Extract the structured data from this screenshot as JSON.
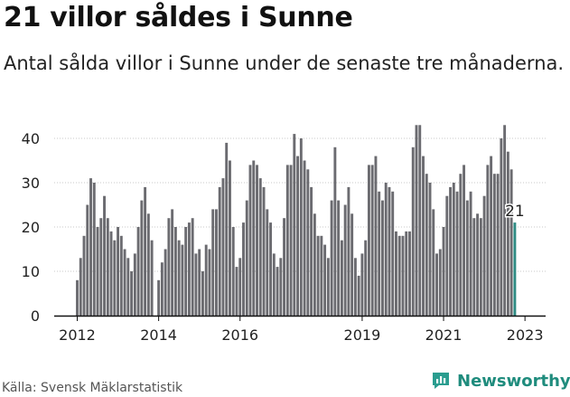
{
  "header": {
    "title": "21 villor såldes i Sunne",
    "subtitle": "Antal sålda villor i Sunne under de senaste tre månaderna."
  },
  "footer": {
    "source": "Källa: Svensk Mäklarstatistik",
    "brand": "Newsworthy"
  },
  "colors": {
    "bar": "#6b6b70",
    "highlight": "#2e8b83",
    "brand": "#1f8c7d"
  },
  "chart_data": {
    "type": "bar",
    "title": "21 villor såldes i Sunne",
    "xlabel": "",
    "ylabel": "",
    "ylim": [
      0,
      43
    ],
    "yticks": [
      0,
      10,
      20,
      30,
      40
    ],
    "xticks": [
      "2012",
      "2014",
      "2016",
      "2019",
      "2021",
      "2023"
    ],
    "start": "2012-01",
    "end": "2023-01",
    "highlight_label": "21",
    "values": [
      8,
      13,
      18,
      25,
      31,
      30,
      20,
      22,
      27,
      22,
      19,
      17,
      20,
      18,
      15,
      13,
      10,
      14,
      20,
      26,
      29,
      23,
      17,
      0,
      8,
      12,
      15,
      22,
      24,
      20,
      17,
      16,
      20,
      21,
      22,
      14,
      15,
      10,
      16,
      15,
      24,
      24,
      29,
      31,
      39,
      35,
      20,
      11,
      13,
      21,
      26,
      34,
      35,
      34,
      31,
      29,
      24,
      21,
      14,
      11,
      13,
      22,
      34,
      34,
      41,
      36,
      40,
      35,
      33,
      29,
      23,
      18,
      18,
      16,
      13,
      26,
      38,
      26,
      17,
      25,
      29,
      23,
      13,
      9,
      14,
      17,
      34,
      34,
      36,
      28,
      26,
      30,
      29,
      28,
      19,
      18,
      18,
      19,
      19,
      38,
      43,
      43,
      36,
      32,
      30,
      24,
      14,
      15,
      20,
      27,
      29,
      30,
      28,
      32,
      34,
      26,
      28,
      22,
      23,
      22,
      27,
      34,
      36,
      32,
      32,
      40,
      43,
      37,
      33,
      21
    ]
  }
}
